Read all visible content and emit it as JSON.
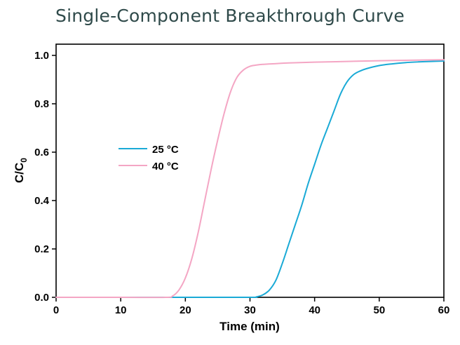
{
  "chart_data": {
    "type": "line",
    "title": "Single-Component Breakthrough Curve",
    "xlabel": "Time (min)",
    "ylabel_main": "C/C",
    "ylabel_sub": "0",
    "xlim": [
      0,
      60
    ],
    "ylim": [
      0,
      1.0
    ],
    "x_ticks": [
      0,
      10,
      20,
      30,
      40,
      50,
      60
    ],
    "y_ticks": [
      0.0,
      0.2,
      0.4,
      0.6,
      0.8,
      1.0
    ],
    "y_tick_labels": [
      "0.0",
      "0.2",
      "0.4",
      "0.6",
      "0.8",
      "1.0"
    ],
    "grid": false,
    "legend_position": "upper-left",
    "series": [
      {
        "name": "25 °C",
        "color": "#1aaad6",
        "x": [
          0,
          10,
          20,
          30,
          31,
          32,
          33,
          34,
          35,
          36,
          37,
          38,
          39,
          40,
          41,
          42,
          43,
          44,
          45,
          46,
          47,
          48,
          50,
          52,
          54,
          56,
          58,
          60
        ],
        "y": [
          0.0,
          0.0,
          0.0,
          0.0,
          0.002,
          0.01,
          0.03,
          0.07,
          0.14,
          0.22,
          0.3,
          0.38,
          0.47,
          0.55,
          0.63,
          0.7,
          0.77,
          0.84,
          0.89,
          0.92,
          0.935,
          0.945,
          0.958,
          0.965,
          0.97,
          0.973,
          0.975,
          0.977
        ]
      },
      {
        "name": "40 °C",
        "color": "#f4a6c4",
        "x": [
          0,
          10,
          17,
          18,
          19,
          20,
          21,
          22,
          23,
          24,
          25,
          26,
          27,
          28,
          29,
          30,
          31,
          32,
          34,
          36,
          40,
          45,
          50,
          55,
          60
        ],
        "y": [
          0.0,
          0.0,
          0.0,
          0.005,
          0.03,
          0.08,
          0.16,
          0.27,
          0.4,
          0.53,
          0.65,
          0.76,
          0.85,
          0.91,
          0.94,
          0.955,
          0.96,
          0.963,
          0.966,
          0.969,
          0.972,
          0.975,
          0.978,
          0.98,
          0.982
        ]
      }
    ]
  }
}
